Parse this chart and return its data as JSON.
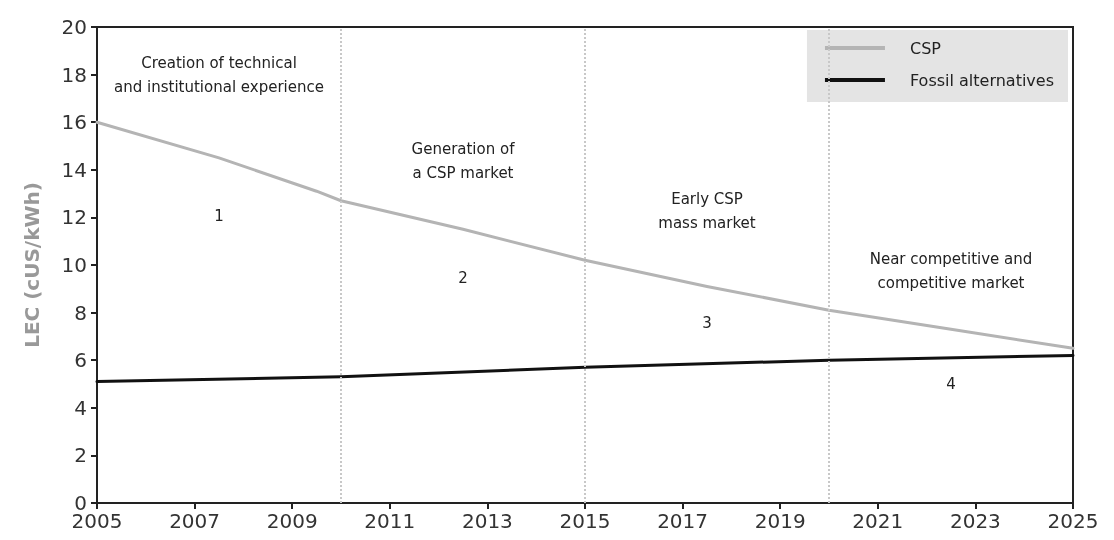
{
  "chart_data": {
    "type": "line",
    "ylabel": "LEC (cUS/kWh)",
    "xlim": [
      2005,
      2025
    ],
    "xticks": [
      2005,
      2007,
      2009,
      2011,
      2013,
      2015,
      2017,
      2019,
      2021,
      2023,
      2025
    ],
    "ylim": [
      0,
      20
    ],
    "yticks": [
      0,
      2,
      4,
      6,
      8,
      10,
      12,
      14,
      16,
      18,
      20
    ],
    "series": [
      {
        "name": "CSP",
        "color": "#b4b4b4",
        "x": [
          2005,
          2007.5,
          2009.5,
          2010,
          2012.5,
          2015,
          2017.5,
          2020,
          2022.5,
          2025
        ],
        "values": [
          16.0,
          14.5,
          13.1,
          12.7,
          11.5,
          10.2,
          9.1,
          8.1,
          7.3,
          6.5
        ]
      },
      {
        "name": "Fossil alternatives",
        "color": "#111111",
        "x": [
          2005,
          2010,
          2015,
          2020,
          2025
        ],
        "values": [
          5.1,
          5.3,
          5.7,
          6.0,
          6.2
        ]
      }
    ],
    "ref_lines": [
      {
        "axis": "x",
        "value": 2010,
        "color": "#c8c8c8",
        "line_style": "dotted"
      },
      {
        "axis": "x",
        "value": 2015,
        "color": "#c8c8c8",
        "line_style": "dotted"
      },
      {
        "axis": "x",
        "value": 2020,
        "color": "#c8c8c8",
        "line_style": "dotted"
      }
    ],
    "annotations": [
      "Creation of technical\nand institutional experience",
      "1",
      "Generation of\na CSP market",
      "2",
      "Early CSP\nmass market",
      "3",
      "Near competitive and\ncompetitive market",
      "4"
    ],
    "grid": false,
    "legend": "top right",
    "marker": "none",
    "line_style": "solid"
  }
}
